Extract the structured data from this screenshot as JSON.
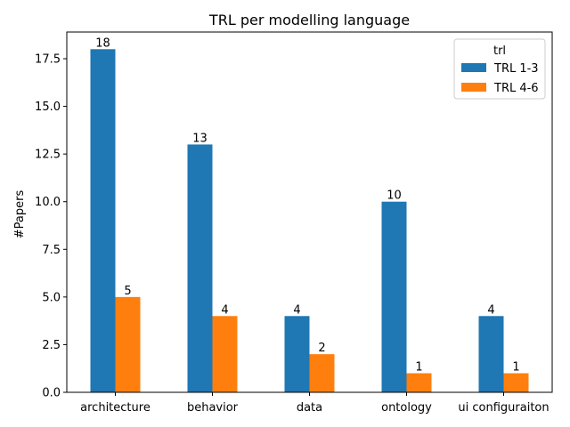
{
  "chart_data": {
    "type": "bar",
    "title": "TRL per modelling language",
    "xlabel": "",
    "ylabel": "#Papers",
    "categories": [
      "architecture",
      "behavior",
      "data",
      "ontology",
      "ui configuraiton"
    ],
    "series": [
      {
        "name": "TRL 1-3",
        "values": [
          18,
          13,
          4,
          10,
          4
        ],
        "color": "#1f77b4"
      },
      {
        "name": "TRL 4-6",
        "values": [
          5,
          4,
          2,
          1,
          1
        ],
        "color": "#ff7f0e"
      }
    ],
    "ylim": [
      0,
      18.9
    ],
    "yticks": [
      "0.0",
      "2.5",
      "5.0",
      "7.5",
      "10.0",
      "12.5",
      "15.0",
      "17.5"
    ],
    "legend_title": "trl",
    "legend_position": "top-right",
    "grid": false
  }
}
